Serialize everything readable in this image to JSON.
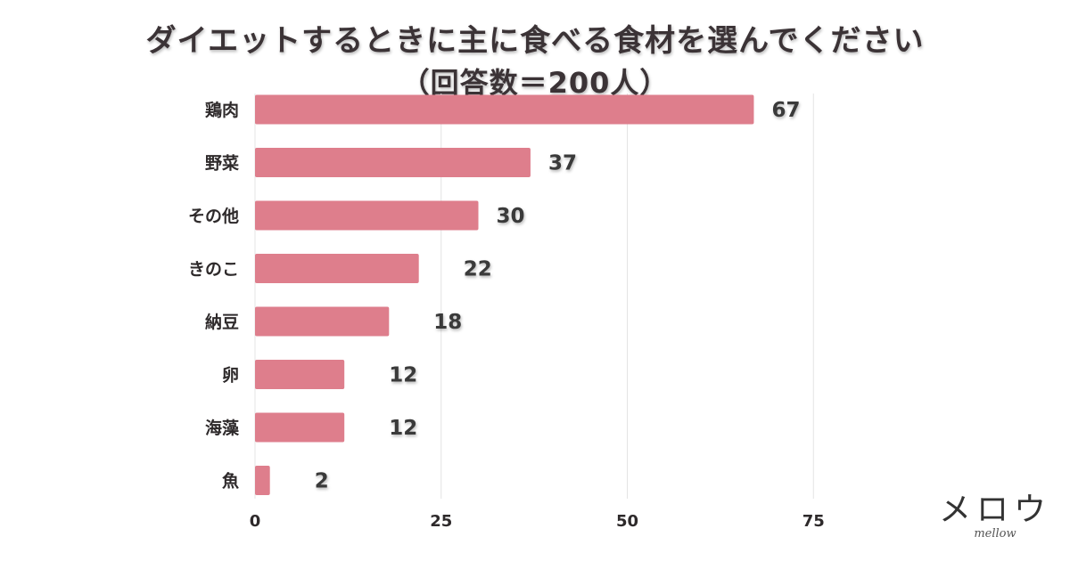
{
  "chart_data": {
    "type": "bar",
    "orientation": "horizontal",
    "title": "ダイエットするときに主に食べる食材を選んでください",
    "subtitle": "（回答数＝200人）",
    "categories": [
      "鶏肉",
      "野菜",
      "その他",
      "きのこ",
      "納豆",
      "卵",
      "海藻",
      "魚"
    ],
    "values": [
      67,
      37,
      30,
      22,
      18,
      12,
      12,
      2
    ],
    "xlim": [
      0,
      75
    ],
    "xticks": [
      "0",
      "25",
      "50",
      "75"
    ],
    "bar_color": "#de7e8c",
    "grid": true,
    "xlabel": "",
    "ylabel": ""
  },
  "branding": {
    "logo": "メロウ",
    "tagline": "mellow"
  }
}
